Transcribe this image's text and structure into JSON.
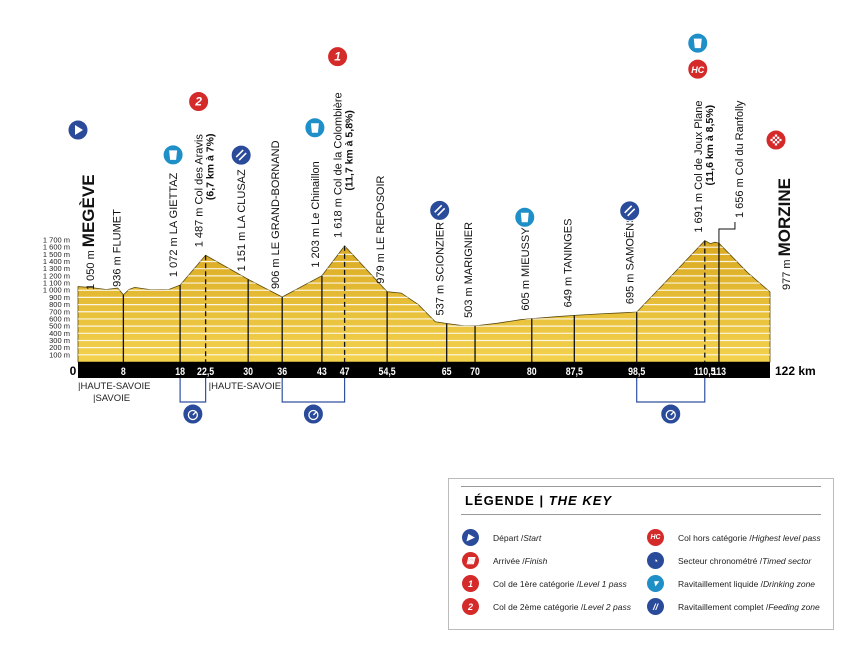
{
  "chart_data": {
    "type": "area",
    "xlabel_end": "122 km",
    "x_unit": "km",
    "y_unit": "m",
    "xlim": [
      0,
      122
    ],
    "ylim": [
      0,
      1700
    ],
    "y_ticks": [
      "100 m",
      "200 m",
      "300 m",
      "400 m",
      "500 m",
      "600 m",
      "700 m",
      "800 m",
      "900 m",
      "1 000 m",
      "1 100 m",
      "1 200 m",
      "1 300 m",
      "1 400 m",
      "1 500 m",
      "1 600 m",
      "1 700 m"
    ],
    "x_ticks": [
      "0",
      "8",
      "18",
      "22,5",
      "30",
      "36",
      "43",
      "47",
      "54,5",
      "65",
      "70",
      "80",
      "87,5",
      "98,5",
      "110,5",
      "113"
    ],
    "fill_color": "#e8c23a",
    "profile": [
      [
        0,
        1050
      ],
      [
        2,
        1040
      ],
      [
        5,
        1010
      ],
      [
        7,
        1030
      ],
      [
        8,
        936
      ],
      [
        9,
        1010
      ],
      [
        10,
        1040
      ],
      [
        13,
        1005
      ],
      [
        16,
        1010
      ],
      [
        18,
        1072
      ],
      [
        22.5,
        1487
      ],
      [
        30,
        1151
      ],
      [
        36,
        906
      ],
      [
        43,
        1203
      ],
      [
        47,
        1618
      ],
      [
        54.5,
        979
      ],
      [
        57,
        960
      ],
      [
        60,
        800
      ],
      [
        63,
        560
      ],
      [
        65,
        537
      ],
      [
        68,
        505
      ],
      [
        70,
        503
      ],
      [
        74,
        540
      ],
      [
        78,
        590
      ],
      [
        80,
        605
      ],
      [
        84,
        630
      ],
      [
        87.5,
        649
      ],
      [
        92,
        670
      ],
      [
        96,
        685
      ],
      [
        98.5,
        695
      ],
      [
        104,
        1150
      ],
      [
        110.5,
        1691
      ],
      [
        111.5,
        1650
      ],
      [
        112.3,
        1670
      ],
      [
        113,
        1656
      ],
      [
        118,
        1250
      ],
      [
        122,
        977
      ]
    ],
    "waypoints": [
      {
        "km": 0,
        "alt": 1050,
        "alt_label": "1 050 m",
        "name": "MEGÈVE",
        "type": "town-major",
        "icon": "start"
      },
      {
        "km": 8,
        "alt": 936,
        "alt_label": "936 m",
        "name": "FLUMET"
      },
      {
        "km": 18,
        "alt": 1072,
        "alt_label": "1 072 m",
        "name": "LA GIETTAZ",
        "icon": "drink"
      },
      {
        "km": 22.5,
        "alt": 1487,
        "alt_label": "1 487 m",
        "name": "Col des Aravis",
        "detail": "(6,7 km à 7%)",
        "icon": "cat2"
      },
      {
        "km": 30,
        "alt": 1151,
        "alt_label": "1 151 m",
        "name": "LA CLUSAZ",
        "icon": "feed"
      },
      {
        "km": 36,
        "alt": 906,
        "alt_label": "906 m",
        "name": "LE GRAND-BORNAND"
      },
      {
        "km": 43,
        "alt": 1203,
        "alt_label": "1 203 m",
        "name": "Le Chinaillon",
        "icon": "drink"
      },
      {
        "km": 47,
        "alt": 1618,
        "alt_label": "1 618 m",
        "name": "Col de la Colombière",
        "detail": "(11,7 km à 5,8%)",
        "icon": "cat1"
      },
      {
        "km": 54.5,
        "alt": 979,
        "alt_label": "979 m",
        "name": "LE REPOSOIR"
      },
      {
        "km": 65,
        "alt": 537,
        "alt_label": "537 m",
        "name": "SCIONZIER",
        "icon": "feed"
      },
      {
        "km": 70,
        "alt": 503,
        "alt_label": "503 m",
        "name": "MARIGNIER"
      },
      {
        "km": 80,
        "alt": 605,
        "alt_label": "605 m",
        "name": "MIEUSSY",
        "icon": "drink"
      },
      {
        "km": 87.5,
        "alt": 649,
        "alt_label": "649 m",
        "name": "TANINGES"
      },
      {
        "km": 98.5,
        "alt": 695,
        "alt_label": "695 m",
        "name": "SAMOËNS",
        "icon": "feed"
      },
      {
        "km": 110.5,
        "alt": 1691,
        "alt_label": "1 691 m",
        "name": "Col de Joux Plane",
        "detail": "(11,6 km à 8,5%)",
        "icon": "hc",
        "icon2": "drink"
      },
      {
        "km": 113,
        "alt": 1656,
        "alt_label": "1 656 m",
        "name": "Col du Ranfolly"
      },
      {
        "km": 122,
        "alt": 977,
        "alt_label": "977 m",
        "name": "MORZINE",
        "type": "town-major",
        "icon": "finish"
      }
    ],
    "timed_sectors": [
      [
        18,
        22.5
      ],
      [
        36,
        47
      ],
      [
        98.5,
        110.5
      ]
    ],
    "departments": [
      {
        "km": 0,
        "label": "|HAUTE-SAVOIE",
        "row": 0
      },
      {
        "km": 0,
        "label": "|SAVOIE",
        "row": 1
      },
      {
        "km": 22.5,
        "label": "|HAUTE-SAVOIE",
        "row": 0
      }
    ]
  },
  "legend": {
    "title": "LÉGENDE | ",
    "title_en": "THE KEY",
    "items": [
      {
        "icon": "start",
        "fr": "Départ / ",
        "en": "Start"
      },
      {
        "icon": "finish",
        "fr": "Arrivée / ",
        "en": "Finish"
      },
      {
        "icon": "cat1",
        "fr": "Col de 1ère catégorie / ",
        "en": "Level 1 pass"
      },
      {
        "icon": "cat2",
        "fr": "Col de 2ème catégorie / ",
        "en": "Level 2 pass"
      },
      {
        "icon": "hc",
        "fr": "Col hors catégorie / ",
        "en": "Highest level pass"
      },
      {
        "icon": "timed",
        "fr": "Secteur chronométré / ",
        "en": "Timed sector"
      },
      {
        "icon": "drink",
        "fr": "Ravitaillement liquide / ",
        "en": "Drinking zone"
      },
      {
        "icon": "feed",
        "fr": "Ravitaillement complet / ",
        "en": "Feeding zone"
      }
    ]
  },
  "colors": {
    "blue": "#2a4a9a",
    "red": "#d42a2a",
    "cyan": "#1f8fc8",
    "bar": "#000000"
  }
}
